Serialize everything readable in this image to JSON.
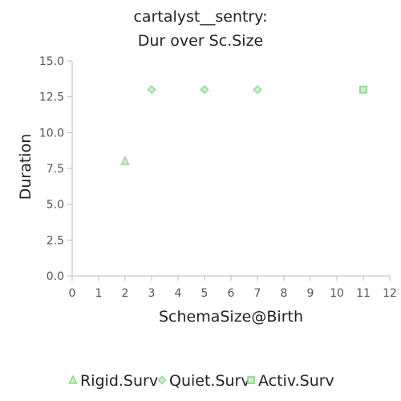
{
  "chart_data": {
    "type": "scatter",
    "title_lines": [
      "cartalyst__sentry:",
      "Dur over Sc.Size"
    ],
    "xlabel": "SchemaSize@Birth",
    "ylabel": "Duration",
    "xlim": [
      0,
      12
    ],
    "ylim": [
      0,
      15
    ],
    "x_ticks": [
      "0",
      "1",
      "2",
      "3",
      "4",
      "5",
      "6",
      "7",
      "8",
      "9",
      "10",
      "11",
      "12"
    ],
    "y_ticks": [
      "0.0",
      "2.5",
      "5.0",
      "7.5",
      "10.0",
      "12.5",
      "15.0"
    ],
    "grid": false,
    "legend_position": "bottom",
    "series": [
      {
        "name": "Rigid.Surv",
        "marker": "triangle",
        "color": "#8fd98f",
        "points": [
          {
            "x": 2,
            "y": 8
          }
        ]
      },
      {
        "name": "Quiet.Surv",
        "marker": "diamond",
        "color": "#8fd98f",
        "points": [
          {
            "x": 3,
            "y": 13
          },
          {
            "x": 5,
            "y": 13
          },
          {
            "x": 7,
            "y": 13
          }
        ]
      },
      {
        "name": "Activ.Surv",
        "marker": "square",
        "color": "#8fd98f",
        "points": [
          {
            "x": 11,
            "y": 13
          }
        ]
      }
    ]
  }
}
